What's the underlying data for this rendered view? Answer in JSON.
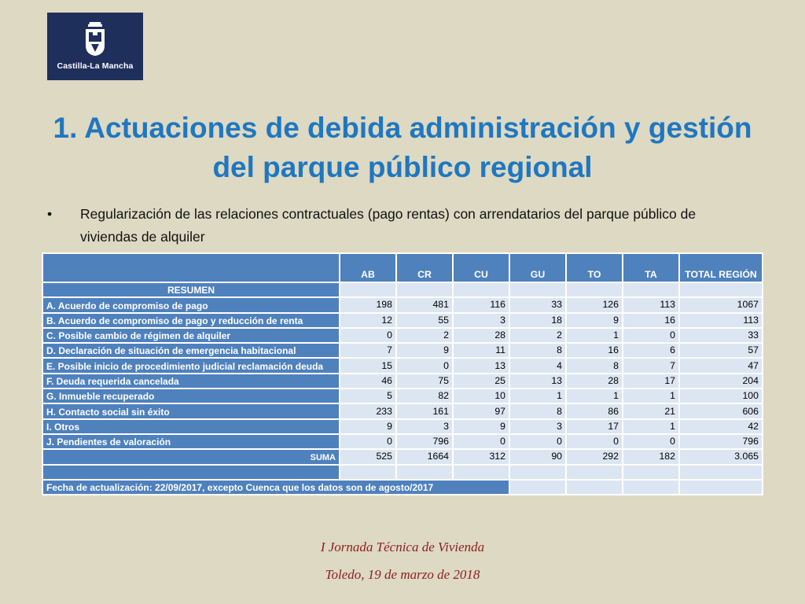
{
  "logo": {
    "text": "Castilla-La Mancha"
  },
  "title": "1. Actuaciones de debida administración y gestión del parque público regional",
  "bullet": {
    "marker": "•",
    "text": "Regularización de las relaciones contractuales (pago rentas) con arrendatarios del parque público de viviendas de alquiler"
  },
  "table": {
    "columns": [
      "AB",
      "CR",
      "CU",
      "GU",
      "TO",
      "TA",
      "TOTAL REGIÓN"
    ],
    "section_label": "RESUMEN",
    "rows": [
      {
        "label": "A. Acuerdo de compromiso de pago",
        "values": [
          "198",
          "481",
          "116",
          "33",
          "126",
          "113",
          "1067"
        ]
      },
      {
        "label": "B. Acuerdo de compromiso de pago y reducción de renta",
        "values": [
          "12",
          "55",
          "3",
          "18",
          "9",
          "16",
          "113"
        ]
      },
      {
        "label": "C. Posible cambio de régimen de alquiler",
        "values": [
          "0",
          "2",
          "28",
          "2",
          "1",
          "0",
          "33"
        ]
      },
      {
        "label": "D. Declaración de situación de emergencia habitacional",
        "values": [
          "7",
          "9",
          "11",
          "8",
          "16",
          "6",
          "57"
        ]
      },
      {
        "label": "E. Posible inicio de procedimiento judicial reclamación deuda",
        "values": [
          "15",
          "0",
          "13",
          "4",
          "8",
          "7",
          "47"
        ]
      },
      {
        "label": "F. Deuda requerida cancelada",
        "values": [
          "46",
          "75",
          "25",
          "13",
          "28",
          "17",
          "204"
        ]
      },
      {
        "label": "G. Inmueble recuperado",
        "values": [
          "5",
          "82",
          "10",
          "1",
          "1",
          "1",
          "100"
        ]
      },
      {
        "label": "H. Contacto social sin éxito",
        "values": [
          "233",
          "161",
          "97",
          "8",
          "86",
          "21",
          "606"
        ]
      },
      {
        "label": "I. Otros",
        "values": [
          "9",
          "3",
          "9",
          "3",
          "17",
          "1",
          "42"
        ]
      },
      {
        "label": "J. Pendientes de valoración",
        "values": [
          "0",
          "796",
          "0",
          "0",
          "0",
          "0",
          "796"
        ]
      }
    ],
    "suma": {
      "label": "SUMA",
      "values": [
        "525",
        "1664",
        "312",
        "90",
        "292",
        "182",
        "3.065"
      ]
    },
    "note": "Fecha de actualización: 22/09/2017, excepto Cuenca que los datos son de agosto/2017"
  },
  "footer": {
    "line1": "I Jornada Técnica de Vivienda",
    "line2": "Toledo, 19 de marzo de 2018"
  }
}
